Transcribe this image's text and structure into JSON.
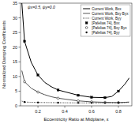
{
  "chart_data": {
    "type": "line",
    "xlabel": "Eccentricity Ratio at Midplane, ε",
    "ylabel": "Normalized Damping Coefficients",
    "annotation": "ψx=0.5, ψy=0.0",
    "xlim": [
      0.07,
      0.9
    ],
    "ylim": [
      0,
      35
    ],
    "xticks": [
      0.2,
      0.4,
      0.6,
      0.8
    ],
    "yticks": [
      0,
      5,
      10,
      15,
      20,
      25,
      30,
      35
    ],
    "grid": false,
    "legend": "upper right",
    "series": [
      {
        "name": "Current Work, Bxx",
        "type": "line",
        "color": "#000000",
        "line_style": "solid",
        "x": [
          0.08,
          0.1,
          0.15,
          0.2,
          0.25,
          0.3,
          0.35,
          0.4,
          0.5,
          0.6,
          0.7,
          0.75,
          0.8,
          0.85,
          0.88
        ],
        "values": [
          35.0,
          22.0,
          14.8,
          10.5,
          8.0,
          6.5,
          5.4,
          4.8,
          3.6,
          2.9,
          2.8,
          3.2,
          5.0,
          7.5,
          9.5
        ]
      },
      {
        "name": "Current Work, Bxy Byx",
        "type": "line",
        "color": "#555555",
        "line_style": "solid",
        "x": [
          0.08,
          0.1,
          0.15,
          0.2,
          0.25,
          0.3,
          0.35,
          0.4,
          0.5,
          0.6,
          0.7,
          0.75,
          0.8,
          0.85,
          0.88
        ],
        "values": [
          12.0,
          8.2,
          6.0,
          4.7,
          3.8,
          3.1,
          2.6,
          2.3,
          1.7,
          1.35,
          1.2,
          1.15,
          1.1,
          1.2,
          1.3
        ]
      },
      {
        "name": "Current Work, Byy",
        "type": "line",
        "color": "#000000",
        "line_style": "dotted",
        "x": [
          0.08,
          0.1,
          0.15,
          0.2,
          0.3,
          0.4,
          0.5,
          0.6,
          0.7,
          0.8,
          0.85,
          0.88
        ],
        "values": [
          1.6,
          1.3,
          1.2,
          1.15,
          1.1,
          1.05,
          1.02,
          1.0,
          1.0,
          1.05,
          1.1,
          1.15
        ]
      },
      {
        "name": "[Pafelias 74], Bxx",
        "type": "scatter",
        "color": "#000000",
        "marker": "square",
        "x": [
          0.1,
          0.2,
          0.35,
          0.5,
          0.6,
          0.7,
          0.8
        ],
        "values": [
          22.0,
          10.5,
          5.4,
          3.6,
          2.9,
          2.8,
          5.0
        ]
      },
      {
        "name": "[Pafelias 74], Bxy Byx",
        "type": "scatter",
        "color": "#000000",
        "marker": "open-circle",
        "x": [
          0.1,
          0.2,
          0.35,
          0.5,
          0.6,
          0.7,
          0.8
        ],
        "values": [
          8.2,
          4.7,
          2.6,
          1.7,
          1.35,
          1.2,
          1.1
        ]
      },
      {
        "name": "[Pafelias 74], Byy",
        "type": "scatter",
        "color": "#000000",
        "marker": "circle",
        "x": [
          0.1,
          0.2,
          0.35,
          0.5,
          0.6,
          0.7,
          0.8
        ],
        "values": [
          1.3,
          1.15,
          1.06,
          1.02,
          1.0,
          1.0,
          1.05
        ]
      }
    ]
  }
}
